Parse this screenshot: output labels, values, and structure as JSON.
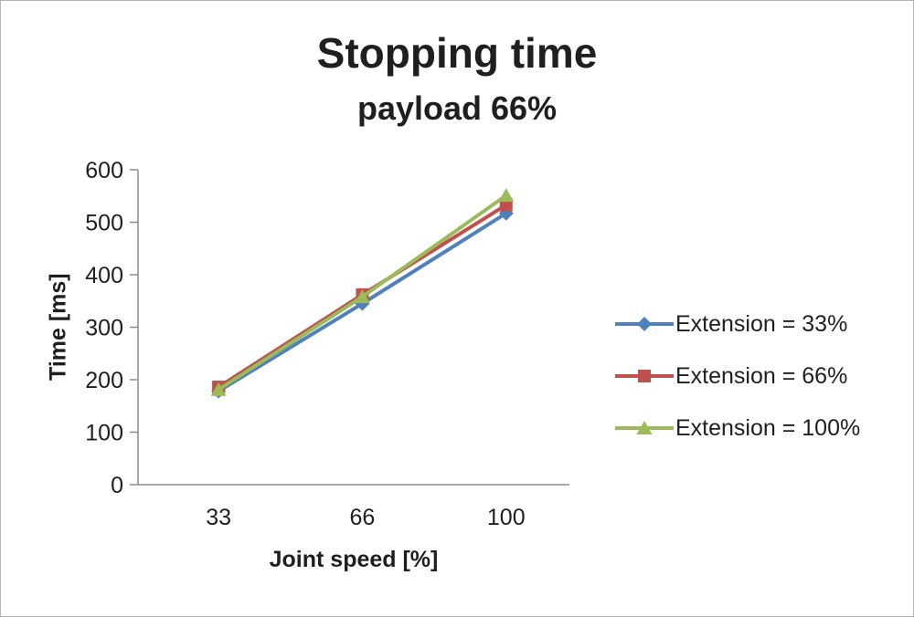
{
  "chart_data": {
    "type": "line",
    "title": "Stopping time",
    "subtitle": "payload 66%",
    "xlabel": "Joint speed [%]",
    "ylabel": "Time [ms]",
    "categories": [
      "33",
      "66",
      "100"
    ],
    "ylim": [
      0,
      600
    ],
    "yticks": [
      0,
      100,
      200,
      300,
      400,
      500,
      600
    ],
    "grid": false,
    "legend_position": "right",
    "axis_color": "#8c8c8c",
    "text_color": "#1f1f1f",
    "series": [
      {
        "name": "Extension = 33%",
        "values": [
          178,
          345,
          517
        ],
        "color": "#4F81BD",
        "marker": "diamond"
      },
      {
        "name": "Extension = 66%",
        "values": [
          186,
          362,
          533
        ],
        "color": "#C0504D",
        "marker": "square"
      },
      {
        "name": "Extension = 100%",
        "values": [
          181,
          358,
          551
        ],
        "color": "#9BBB59",
        "marker": "triangle"
      }
    ]
  }
}
